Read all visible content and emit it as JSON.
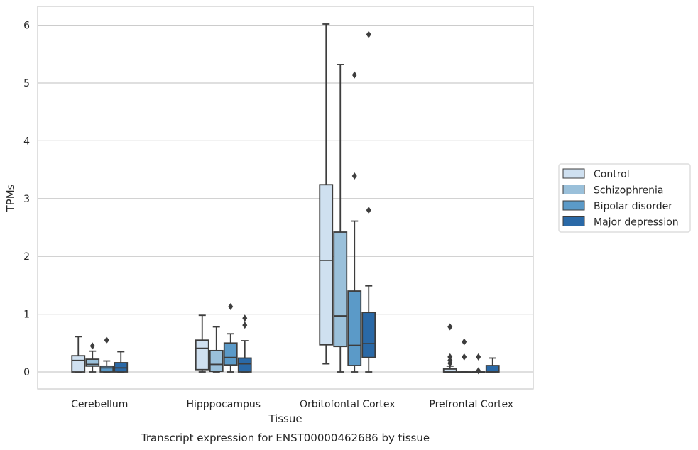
{
  "chart_data": {
    "type": "box",
    "caption": "Transcript expression for ENST00000462686 by tissue",
    "xlabel": "Tissue",
    "ylabel": "TPMs",
    "ylim": [
      -0.3,
      6.33
    ],
    "yticks": [
      0,
      1,
      2,
      3,
      4,
      5,
      6
    ],
    "grid": "horizontal",
    "legend_placement": "right, outside",
    "categories": [
      "Cerebellum",
      "Hipppocampus",
      "Orbitofontal Cortex",
      "Prefrontal Cortex"
    ],
    "series": [
      {
        "name": "Control",
        "color": "#cfe0f0",
        "boxes": [
          {
            "whisker_low": 0.0,
            "q1": 0.0,
            "median": 0.2,
            "q3": 0.28,
            "whisker_high": 0.61,
            "outliers": []
          },
          {
            "whisker_low": 0.0,
            "q1": 0.04,
            "median": 0.41,
            "q3": 0.55,
            "whisker_high": 0.98,
            "outliers": []
          },
          {
            "whisker_low": 0.14,
            "q1": 0.47,
            "median": 1.93,
            "q3": 3.24,
            "whisker_high": 6.02,
            "outliers": []
          },
          {
            "whisker_low": 0.0,
            "q1": 0.0,
            "median": 0.0,
            "q3": 0.05,
            "whisker_high": 0.1,
            "outliers": [
              0.15,
              0.2,
              0.26,
              0.78
            ]
          }
        ]
      },
      {
        "name": "Schizophrenia",
        "color": "#9ac0da",
        "boxes": [
          {
            "whisker_low": 0.0,
            "q1": 0.1,
            "median": 0.13,
            "q3": 0.22,
            "whisker_high": 0.36,
            "outliers": [
              0.45
            ]
          },
          {
            "whisker_low": 0.0,
            "q1": 0.01,
            "median": 0.13,
            "q3": 0.37,
            "whisker_high": 0.78,
            "outliers": []
          },
          {
            "whisker_low": 0.0,
            "q1": 0.44,
            "median": 0.97,
            "q3": 2.42,
            "whisker_high": 5.32,
            "outliers": []
          },
          {
            "whisker_low": 0.0,
            "q1": 0.0,
            "median": 0.0,
            "q3": 0.0,
            "whisker_high": 0.0,
            "outliers": [
              0.26,
              0.52
            ]
          }
        ]
      },
      {
        "name": "Bipolar disorder",
        "color": "#5b9ac8",
        "boxes": [
          {
            "whisker_low": 0.0,
            "q1": 0.0,
            "median": 0.07,
            "q3": 0.1,
            "whisker_high": 0.19,
            "outliers": [
              0.55
            ]
          },
          {
            "whisker_low": 0.0,
            "q1": 0.12,
            "median": 0.25,
            "q3": 0.5,
            "whisker_high": 0.66,
            "outliers": [
              1.13
            ]
          },
          {
            "whisker_low": 0.0,
            "q1": 0.11,
            "median": 0.46,
            "q3": 1.4,
            "whisker_high": 2.61,
            "outliers": [
              3.39,
              5.14
            ]
          },
          {
            "whisker_low": 0.0,
            "q1": 0.0,
            "median": 0.0,
            "q3": 0.0,
            "whisker_high": 0.0,
            "outliers": [
              0.02,
              0.26
            ]
          }
        ]
      },
      {
        "name": "Major depression",
        "color": "#2a69a7",
        "boxes": [
          {
            "whisker_low": 0.0,
            "q1": 0.0,
            "median": 0.07,
            "q3": 0.16,
            "whisker_high": 0.35,
            "outliers": []
          },
          {
            "whisker_low": 0.0,
            "q1": 0.0,
            "median": 0.14,
            "q3": 0.24,
            "whisker_high": 0.54,
            "outliers": [
              0.81,
              0.93
            ]
          },
          {
            "whisker_low": 0.0,
            "q1": 0.25,
            "median": 0.49,
            "q3": 1.03,
            "whisker_high": 1.49,
            "outliers": [
              2.8,
              5.84
            ]
          },
          {
            "whisker_low": 0.0,
            "q1": 0.0,
            "median": 0.0,
            "q3": 0.11,
            "whisker_high": 0.24,
            "outliers": []
          }
        ]
      }
    ]
  }
}
